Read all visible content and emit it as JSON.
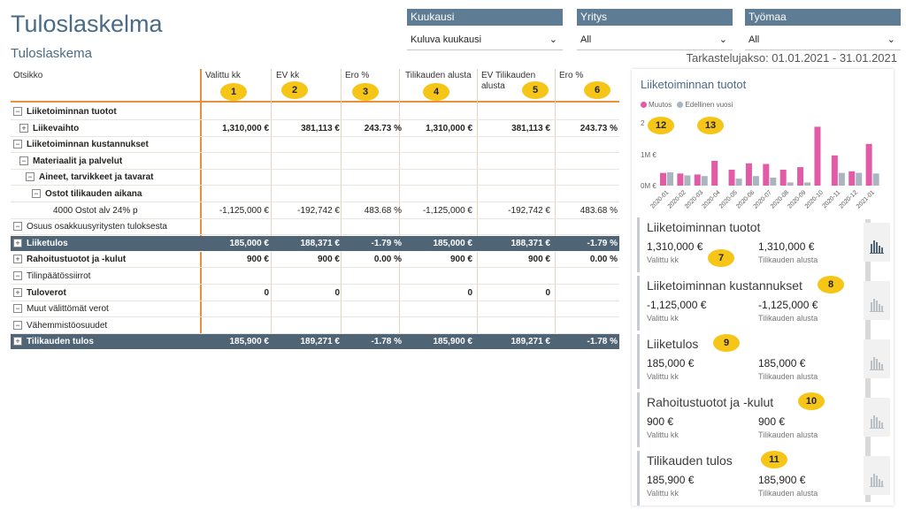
{
  "header": {
    "title": "Tuloslaskelma",
    "subtitle": "Tuloslaskema",
    "period": "Tarkastelujakso: 01.01.2021 - 31.01.2021"
  },
  "slicers": [
    {
      "label": "Kuukausi",
      "value": "Kuluva kuukausi"
    },
    {
      "label": "Yritys",
      "value": "All"
    },
    {
      "label": "Työmaa",
      "value": "All"
    }
  ],
  "matrix": {
    "columns": [
      "Otsikko",
      "Valittu kk",
      "EV kk",
      "Ero %",
      "Tilikauden alusta",
      "EV Tilikauden alusta",
      "Ero %"
    ],
    "rows": [
      {
        "label": "Liiketoiminnan tuotot",
        "level": 0,
        "icon": "−",
        "bold": true,
        "total": false,
        "values": [
          "",
          "",
          "",
          "",
          "",
          ""
        ]
      },
      {
        "label": "Liikevaihto",
        "level": 1,
        "icon": "+",
        "bold": true,
        "total": false,
        "values": [
          "1,310,000 €",
          "381,113 €",
          "243.73 %",
          "1,310,000 €",
          "381,113 €",
          "243.73 %"
        ]
      },
      {
        "label": "Liiketoiminnan kustannukset",
        "level": 0,
        "icon": "−",
        "bold": true,
        "total": false,
        "values": [
          "",
          "",
          "",
          "",
          "",
          ""
        ]
      },
      {
        "label": "Materiaalit ja palvelut",
        "level": 1,
        "icon": "−",
        "bold": true,
        "total": false,
        "values": [
          "",
          "",
          "",
          "",
          "",
          ""
        ]
      },
      {
        "label": "Aineet, tarvikkeet ja tavarat",
        "level": 2,
        "icon": "−",
        "bold": true,
        "total": false,
        "values": [
          "",
          "",
          "",
          "",
          "",
          ""
        ]
      },
      {
        "label": "Ostot tilikauden aikana",
        "level": 3,
        "icon": "−",
        "bold": true,
        "total": false,
        "values": [
          "",
          "",
          "",
          "",
          "",
          ""
        ]
      },
      {
        "label": "4000 Ostot alv 24% p",
        "level": 4,
        "icon": "",
        "bold": false,
        "total": false,
        "values": [
          "-1,125,000 €",
          "-192,742 €",
          "483.68 %",
          "-1,125,000 €",
          "-192,742 €",
          "483.68 %"
        ]
      },
      {
        "label": "Osuus osakkuusyritysten tuloksesta",
        "level": 0,
        "icon": "−",
        "bold": false,
        "total": false,
        "values": [
          "",
          "",
          "",
          "",
          "",
          ""
        ]
      },
      {
        "label": "Liiketulos",
        "level": 0,
        "icon": "+",
        "bold": true,
        "total": true,
        "values": [
          "185,000 €",
          "188,371 €",
          "-1.79 %",
          "185,000 €",
          "188,371 €",
          "-1.79 %"
        ]
      },
      {
        "label": "Rahoitustuotot ja -kulut",
        "level": 0,
        "icon": "+",
        "bold": true,
        "total": false,
        "values": [
          "900 €",
          "900 €",
          "0.00 %",
          "900 €",
          "900 €",
          "0.00 %"
        ]
      },
      {
        "label": "Tilinpäätössiirrot",
        "level": 0,
        "icon": "−",
        "bold": false,
        "total": false,
        "values": [
          "",
          "",
          "",
          "",
          "",
          ""
        ]
      },
      {
        "label": "Tuloverot",
        "level": 0,
        "icon": "+",
        "bold": true,
        "total": false,
        "values": [
          "0",
          "0",
          "",
          "0",
          "0",
          ""
        ]
      },
      {
        "label": "Muut välittömät verot",
        "level": 0,
        "icon": "−",
        "bold": false,
        "total": false,
        "values": [
          "",
          "",
          "",
          "",
          "",
          ""
        ]
      },
      {
        "label": "Vähemmistöosuudet",
        "level": 0,
        "icon": "−",
        "bold": false,
        "total": false,
        "values": [
          "",
          "",
          "",
          "",
          "",
          ""
        ]
      },
      {
        "label": "Tilikauden tulos",
        "level": 0,
        "icon": "+",
        "bold": true,
        "total": true,
        "values": [
          "185,900 €",
          "189,271 €",
          "-1.78 %",
          "185,900 €",
          "189,271 €",
          "-1.78 %"
        ]
      }
    ],
    "header_badges": [
      "1",
      "2",
      "3",
      "4",
      "5",
      "6"
    ]
  },
  "chart_data": {
    "type": "bar",
    "title": "Liiketoiminnan tuotot",
    "categories": [
      "2020-01",
      "2020-02",
      "2020-03",
      "2020-04",
      "2020-05",
      "2020-06",
      "2020-07",
      "2020-08",
      "2020-09",
      "2020-10",
      "2020-11",
      "2020-12",
      "2021-01"
    ],
    "series": [
      {
        "name": "Muutos",
        "color": "#e15ba6",
        "values": [
          0.4,
          0.38,
          0.35,
          0.78,
          0.5,
          0.7,
          0.68,
          0.5,
          0.58,
          1.85,
          0.95,
          0.45,
          1.31
        ]
      },
      {
        "name": "Edellinen vuosi",
        "color": "#a9b5bf",
        "values": [
          0.42,
          0.32,
          0.3,
          0.0,
          0.22,
          0.3,
          0.25,
          0.1,
          0.1,
          0.0,
          0.4,
          0.4,
          0.38
        ]
      }
    ],
    "y_ticks": [
      "2",
      "1M €",
      "0M €"
    ],
    "ylim": [
      0,
      2.0
    ],
    "legend_badges": [
      "12",
      "13"
    ]
  },
  "cards": [
    {
      "title": "Liiketoiminnan tuotot",
      "v1": "1,310,000 €",
      "l1": "Valittu kk",
      "v2": "1,310,000 €",
      "l2": "Tilikauden alusta",
      "badge": "7"
    },
    {
      "title": "Liiketoiminnan kustannukset",
      "v1": "-1,125,000 €",
      "l1": "Valittu kk",
      "v2": "-1,125,000 €",
      "l2": "Tilikauden alusta",
      "badge": "8"
    },
    {
      "title": "Liiketulos",
      "v1": "185,000 €",
      "l1": "Valittu kk",
      "v2": "185,000 €",
      "l2": "Tilikauden alusta",
      "badge": "9"
    },
    {
      "title": "Rahoitustuotot ja -kulut",
      "v1": "900 €",
      "l1": "Valittu kk",
      "v2": "900 €",
      "l2": "Tilikauden alusta",
      "badge": "10"
    },
    {
      "title": "Tilikauden tulos",
      "v1": "185,900 €",
      "l1": "Valittu kk",
      "v2": "185,900 €",
      "l2": "Tilikauden alusta",
      "badge": "11"
    }
  ],
  "colors": {
    "accent": "#e8903a",
    "total_row": "#4f6475",
    "badge": "#f5c518",
    "title": "#4a6b86"
  }
}
